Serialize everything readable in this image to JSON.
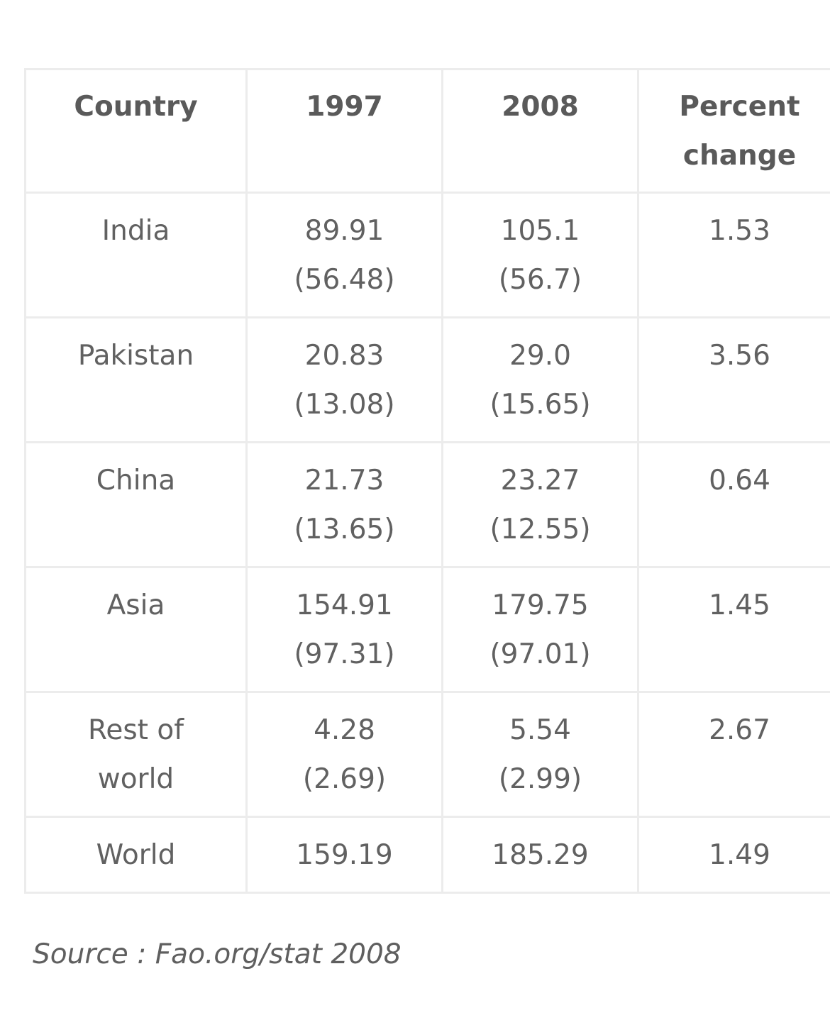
{
  "table": {
    "headers": {
      "country": "Country",
      "y1997": "1997",
      "y2008": "2008",
      "pct_line1": "Percent",
      "pct_line2": "change"
    },
    "rows": [
      {
        "country_1": "India",
        "country_2": "",
        "v1997": "89.91",
        "s1997": "(56.48)",
        "v2008": "105.1",
        "s2008": "(56.7)",
        "pct": "1.53"
      },
      {
        "country_1": "Pakistan",
        "country_2": "",
        "v1997": "20.83",
        "s1997": "(13.08)",
        "v2008": "29.0",
        "s2008": "(15.65)",
        "pct": "3.56"
      },
      {
        "country_1": "China",
        "country_2": "",
        "v1997": "21.73",
        "s1997": "(13.65)",
        "v2008": "23.27",
        "s2008": "(12.55)",
        "pct": "0.64"
      },
      {
        "country_1": "Asia",
        "country_2": "",
        "v1997": "154.91",
        "s1997": "(97.31)",
        "v2008": "179.75",
        "s2008": "(97.01)",
        "pct": "1.45"
      },
      {
        "country_1": "Rest of",
        "country_2": "world",
        "v1997": "4.28",
        "s1997": "(2.69)",
        "v2008": "5.54",
        "s2008": "(2.99)",
        "pct": "2.67"
      },
      {
        "country_1": "World",
        "country_2": "",
        "v1997": "159.19",
        "s1997": "",
        "v2008": "185.29",
        "s2008": "",
        "pct": "1.49"
      }
    ]
  },
  "source": "Source : Fao.org/stat 2008"
}
